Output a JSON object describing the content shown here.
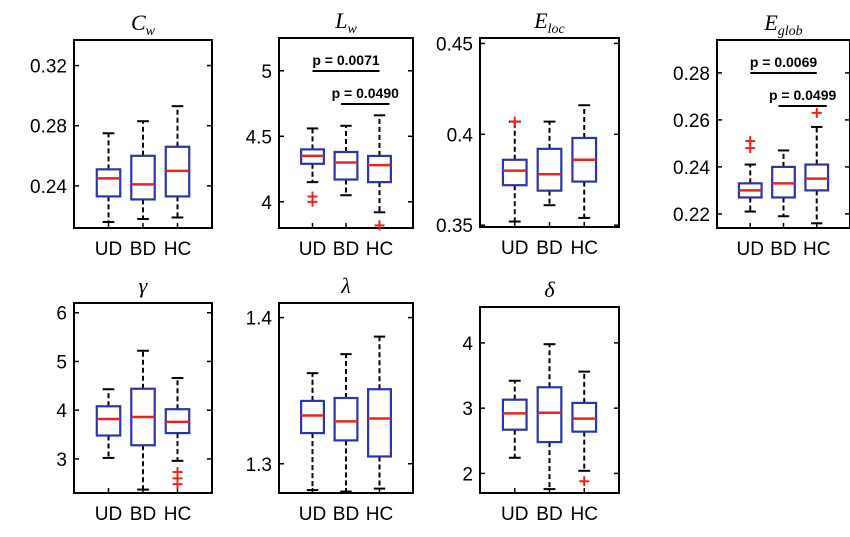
{
  "chart_data": [
    {
      "type": "box",
      "title": "C",
      "title_sub": "w",
      "categories": [
        "UD",
        "BD",
        "HC"
      ],
      "yticks": [
        "0.24",
        "0.28",
        "0.32"
      ],
      "ylim": [
        0.212,
        0.337
      ],
      "boxes": [
        {
          "whisker_low": 0.216,
          "q1": 0.233,
          "median": 0.245,
          "q3": 0.251,
          "whisker_high": 0.275,
          "outliers": []
        },
        {
          "whisker_low": 0.218,
          "q1": 0.231,
          "median": 0.241,
          "q3": 0.26,
          "whisker_high": 0.283,
          "outliers": []
        },
        {
          "whisker_low": 0.219,
          "q1": 0.233,
          "median": 0.25,
          "q3": 0.266,
          "whisker_high": 0.293,
          "outliers": []
        }
      ],
      "significance": []
    },
    {
      "type": "box",
      "title": "L",
      "title_sub": "w",
      "categories": [
        "UD",
        "BD",
        "HC"
      ],
      "yticks": [
        "4",
        "4.5",
        "5"
      ],
      "ylim": [
        3.8,
        5.25
      ],
      "boxes": [
        {
          "whisker_low": 4.15,
          "q1": 4.29,
          "median": 4.35,
          "q3": 4.4,
          "whisker_high": 4.56,
          "outliers": [
            4.04,
            4.0
          ]
        },
        {
          "whisker_low": 4.05,
          "q1": 4.17,
          "median": 4.3,
          "q3": 4.38,
          "whisker_high": 4.58,
          "outliers": []
        },
        {
          "whisker_low": 3.92,
          "q1": 4.15,
          "median": 4.28,
          "q3": 4.35,
          "whisker_high": 4.66,
          "outliers": [
            3.82
          ]
        }
      ],
      "significance": [
        {
          "from": "UD",
          "to": "HC",
          "label": "p = 0.0071"
        },
        {
          "from": "BD",
          "to": "HC",
          "label": "p = 0.0490"
        }
      ]
    },
    {
      "type": "box",
      "title": "E",
      "title_sub": "loc",
      "categories": [
        "UD",
        "BD",
        "HC"
      ],
      "yticks": [
        "0.35",
        "0.4",
        "0.45"
      ],
      "ylim": [
        0.349,
        0.453
      ],
      "boxes": [
        {
          "whisker_low": 0.352,
          "q1": 0.372,
          "median": 0.38,
          "q3": 0.386,
          "whisker_high": 0.407,
          "outliers": [
            0.407
          ]
        },
        {
          "whisker_low": 0.361,
          "q1": 0.369,
          "median": 0.378,
          "q3": 0.392,
          "whisker_high": 0.407,
          "outliers": []
        },
        {
          "whisker_low": 0.354,
          "q1": 0.374,
          "median": 0.386,
          "q3": 0.398,
          "whisker_high": 0.416,
          "outliers": []
        }
      ],
      "significance": []
    },
    {
      "type": "box",
      "title": "E",
      "title_sub": "glob",
      "categories": [
        "UD",
        "BD",
        "HC"
      ],
      "yticks": [
        "0.22",
        "0.24",
        "0.26",
        "0.28"
      ],
      "ylim": [
        0.214,
        0.294
      ],
      "boxes": [
        {
          "whisker_low": 0.221,
          "q1": 0.227,
          "median": 0.23,
          "q3": 0.233,
          "whisker_high": 0.241,
          "outliers": [
            0.248,
            0.251
          ]
        },
        {
          "whisker_low": 0.219,
          "q1": 0.227,
          "median": 0.233,
          "q3": 0.24,
          "whisker_high": 0.247,
          "outliers": []
        },
        {
          "whisker_low": 0.216,
          "q1": 0.23,
          "median": 0.235,
          "q3": 0.241,
          "whisker_high": 0.257,
          "outliers": [
            0.263
          ]
        }
      ],
      "significance": [
        {
          "from": "UD",
          "to": "HC",
          "label": "p = 0.0069"
        },
        {
          "from": "BD",
          "to": "HC",
          "label": "p = 0.0499"
        }
      ]
    },
    {
      "type": "box",
      "title": "γ",
      "title_sub": "",
      "categories": [
        "UD",
        "BD",
        "HC"
      ],
      "yticks": [
        "3",
        "4",
        "5",
        "6"
      ],
      "ylim": [
        2.3,
        6.2
      ],
      "boxes": [
        {
          "whisker_low": 3.02,
          "q1": 3.48,
          "median": 3.82,
          "q3": 4.08,
          "whisker_high": 4.43,
          "outliers": []
        },
        {
          "whisker_low": 2.37,
          "q1": 3.28,
          "median": 3.86,
          "q3": 4.44,
          "whisker_high": 5.22,
          "outliers": []
        },
        {
          "whisker_low": 2.96,
          "q1": 3.53,
          "median": 3.76,
          "q3": 4.02,
          "whisker_high": 4.66,
          "outliers": [
            2.73,
            2.6,
            2.48
          ]
        }
      ],
      "significance": []
    },
    {
      "type": "box",
      "title": "λ",
      "title_sub": "",
      "categories": [
        "UD",
        "BD",
        "HC"
      ],
      "yticks": [
        "1.3",
        "1.4"
      ],
      "ylim": [
        1.28,
        1.41
      ],
      "boxes": [
        {
          "whisker_low": 1.282,
          "q1": 1.321,
          "median": 1.333,
          "q3": 1.343,
          "whisker_high": 1.362,
          "outliers": []
        },
        {
          "whisker_low": 1.281,
          "q1": 1.316,
          "median": 1.329,
          "q3": 1.345,
          "whisker_high": 1.375,
          "outliers": []
        },
        {
          "whisker_low": 1.283,
          "q1": 1.305,
          "median": 1.331,
          "q3": 1.351,
          "whisker_high": 1.387,
          "outliers": []
        }
      ],
      "significance": []
    },
    {
      "type": "box",
      "title": "δ",
      "title_sub": "",
      "categories": [
        "UD",
        "BD",
        "HC"
      ],
      "yticks": [
        "2",
        "3",
        "4"
      ],
      "ylim": [
        1.7,
        4.55
      ],
      "boxes": [
        {
          "whisker_low": 2.24,
          "q1": 2.67,
          "median": 2.92,
          "q3": 3.13,
          "whisker_high": 3.42,
          "outliers": []
        },
        {
          "whisker_low": 1.76,
          "q1": 2.48,
          "median": 2.93,
          "q3": 3.32,
          "whisker_high": 3.98,
          "outliers": []
        },
        {
          "whisker_low": 2.04,
          "q1": 2.64,
          "median": 2.84,
          "q3": 3.08,
          "whisker_high": 3.56,
          "outliers": [
            1.88
          ]
        }
      ],
      "significance": []
    }
  ],
  "colors": {
    "box": "#2a35a8",
    "median": "#e5261f",
    "whisker": "#000000",
    "outlier": "#e5261f",
    "frame": "#000000"
  }
}
